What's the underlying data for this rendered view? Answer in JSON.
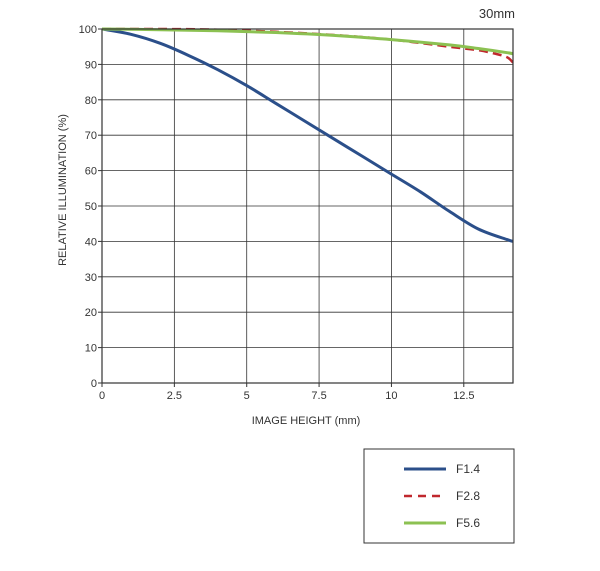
{
  "chart_data": {
    "type": "line",
    "title": "30mm",
    "xlabel": "IMAGE HEIGHT (mm)",
    "ylabel": "RELATIVE ILLUMINATION (%)",
    "xlim": [
      0,
      14.2
    ],
    "ylim": [
      0,
      100
    ],
    "xticks": [
      0,
      2.5,
      5,
      7.5,
      10,
      12.5
    ],
    "xtick_labels": [
      "0",
      "2.5",
      "5",
      "7.5",
      "10",
      "12.5"
    ],
    "yticks": [
      0,
      10,
      20,
      30,
      40,
      50,
      60,
      70,
      80,
      90,
      100
    ],
    "ytick_labels": [
      "0",
      "10",
      "20",
      "30",
      "40",
      "50",
      "60",
      "70",
      "80",
      "90",
      "100"
    ],
    "grid": true,
    "legend_position": "bottom-right, below plot",
    "series": [
      {
        "name": "F1.4",
        "color": "#2b4f8a",
        "style": "solid",
        "x": [
          0,
          1,
          2,
          3,
          4,
          5,
          6,
          7,
          8,
          9,
          10,
          11,
          12,
          13,
          14,
          14.2
        ],
        "y": [
          100,
          98.5,
          96,
          92.5,
          88.5,
          84,
          79,
          74,
          69,
          64,
          59,
          54,
          48.5,
          43.5,
          40.5,
          40
        ]
      },
      {
        "name": "F2.8",
        "color": "#c0282d",
        "style": "dashed",
        "x": [
          0,
          2,
          4,
          6,
          8,
          10,
          12,
          13,
          13.6,
          14,
          14.2
        ],
        "y": [
          100,
          100,
          99.8,
          99.2,
          98.3,
          97,
          95,
          94,
          93,
          92,
          90.5
        ]
      },
      {
        "name": "F5.6",
        "color": "#8cc152",
        "style": "solid",
        "x": [
          0,
          2,
          4,
          6,
          8,
          10,
          12,
          13,
          14,
          14.2
        ],
        "y": [
          100,
          99.8,
          99.5,
          99,
          98.2,
          97,
          95.5,
          94.5,
          93.3,
          93
        ]
      }
    ]
  }
}
